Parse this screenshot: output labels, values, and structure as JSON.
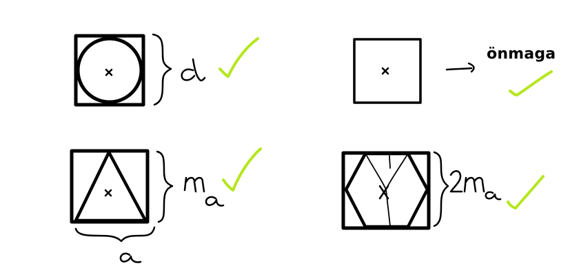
{
  "diagram": {
    "labels": {
      "self_label": "önmaga"
    },
    "handwritten_labels": [
      "d",
      "ma",
      "a",
      "2ma"
    ],
    "colors": {
      "ink": "#000000",
      "checkmark": "#b5e61d",
      "background": "#ffffff"
    },
    "panels": [
      {
        "name": "circle-in-square",
        "label": "d",
        "checked": true
      },
      {
        "name": "square-in-square",
        "label": "önmaga",
        "checked": true
      },
      {
        "name": "triangle-in-square",
        "labels": [
          "ma",
          "a"
        ],
        "checked": true
      },
      {
        "name": "hexagon-in-square",
        "label": "2ma",
        "checked": true
      }
    ]
  }
}
